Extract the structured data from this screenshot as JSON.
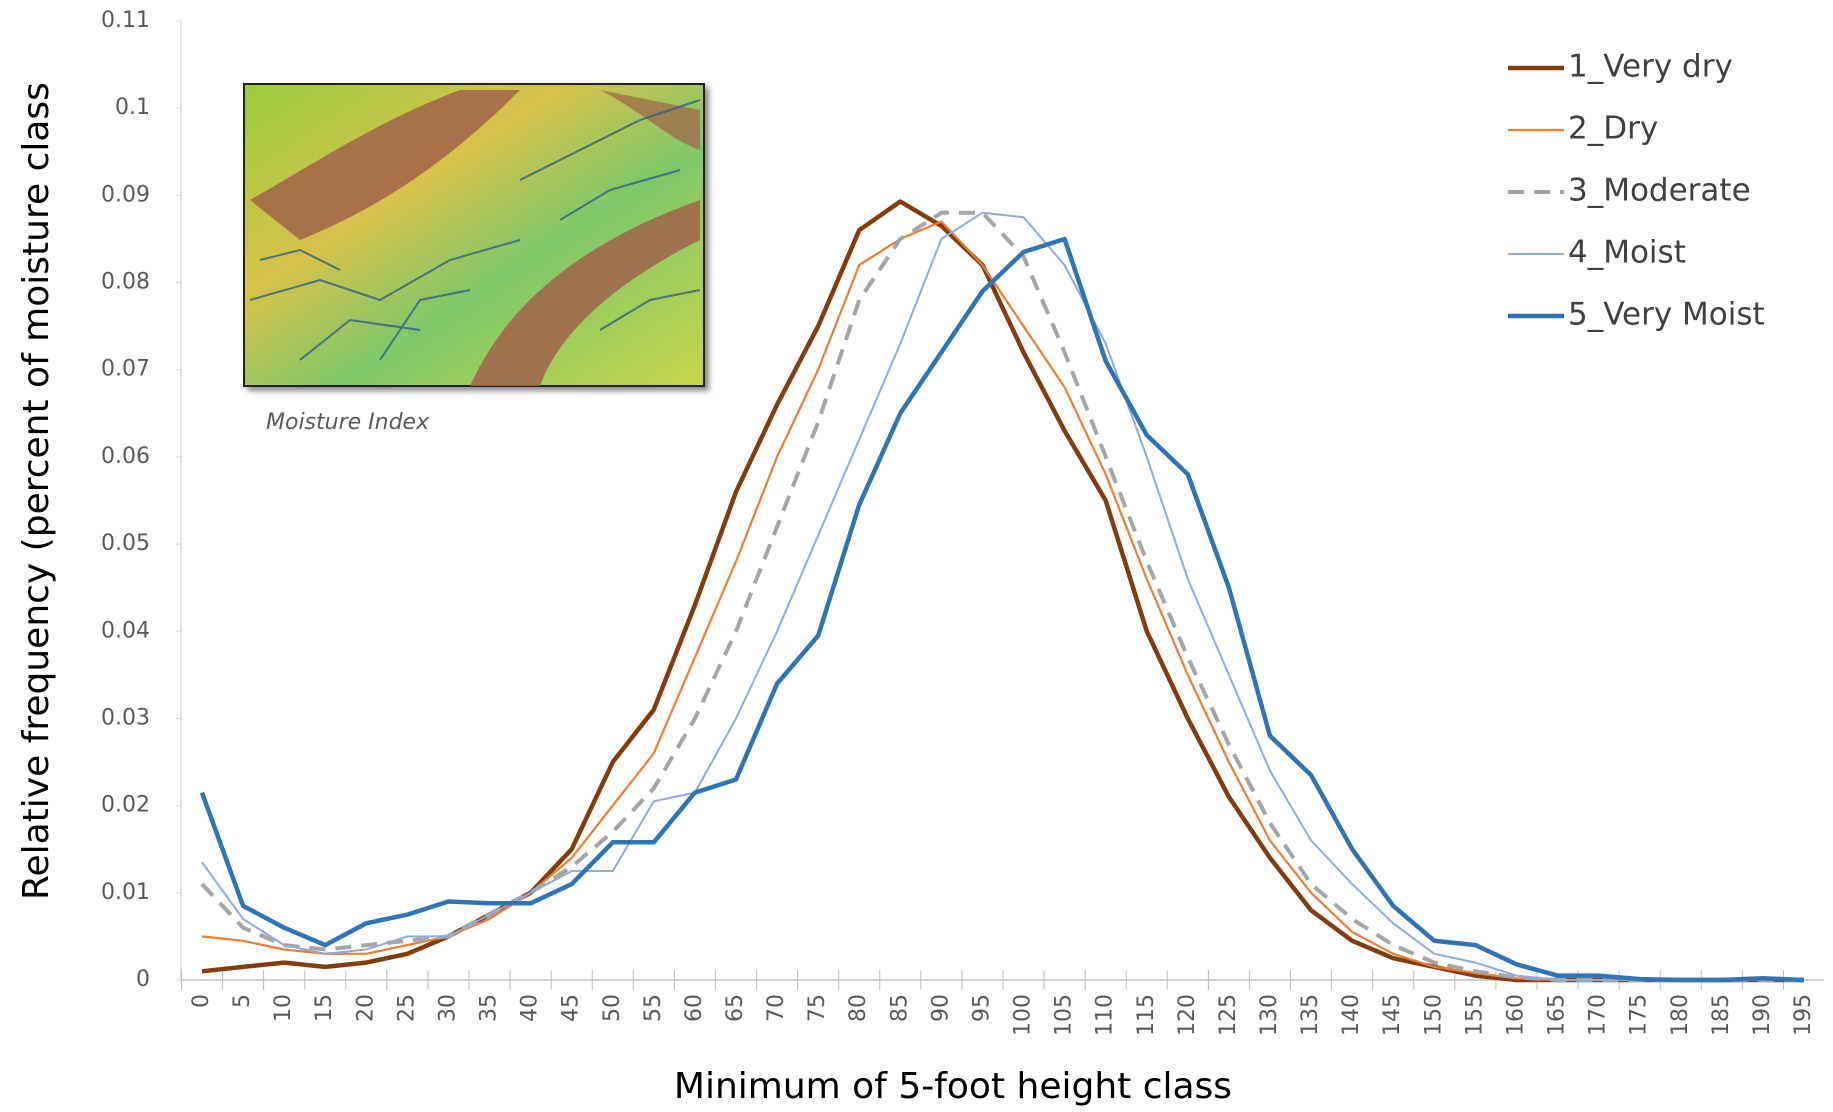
{
  "chart_data": {
    "type": "line",
    "y_label": "Relative frequency (percent of moisture class",
    "x_label": "Minimum of 5-foot height class",
    "annotation": "Moisture Index",
    "categories": [
      "0",
      "5",
      "10",
      "15",
      "20",
      "25",
      "30",
      "35",
      "40",
      "45",
      "50",
      "55",
      "60",
      "65",
      "70",
      "75",
      "80",
      "85",
      "90",
      "95",
      "100",
      "105",
      "110",
      "115",
      "120",
      "125",
      "130",
      "135",
      "140",
      "145",
      "150",
      "155",
      "160",
      "165",
      "170",
      "175",
      "180",
      "185",
      "190",
      "195"
    ],
    "ylim": [
      0,
      0.11
    ],
    "yticks": [
      0,
      0.01,
      0.02,
      0.03,
      0.04,
      0.05,
      0.06,
      0.07,
      0.08,
      0.09,
      0.1,
      0.11
    ],
    "grid": false,
    "legend": "top-right",
    "series": [
      {
        "name": "1_Very dry",
        "color": "#843c0c",
        "width": 4.5,
        "dashed": false,
        "values": [
          0.001,
          0.0015,
          0.002,
          0.0015,
          0.002,
          0.003,
          0.005,
          0.0075,
          0.01,
          0.015,
          0.025,
          0.031,
          0.043,
          0.056,
          0.066,
          0.075,
          0.086,
          0.0893,
          0.0865,
          0.082,
          0.072,
          0.063,
          0.055,
          0.04,
          0.03,
          0.021,
          0.014,
          0.008,
          0.0045,
          0.0025,
          0.0015,
          0.0005,
          0,
          0,
          0,
          0,
          0,
          0,
          0,
          0
        ]
      },
      {
        "name": "2_Dry",
        "color": "#ed7d31",
        "width": 2.2,
        "dashed": false,
        "values": [
          0.005,
          0.0045,
          0.0035,
          0.003,
          0.003,
          0.004,
          0.005,
          0.007,
          0.01,
          0.014,
          0.02,
          0.026,
          0.037,
          0.048,
          0.06,
          0.07,
          0.082,
          0.085,
          0.087,
          0.082,
          0.075,
          0.068,
          0.058,
          0.046,
          0.035,
          0.025,
          0.016,
          0.01,
          0.0055,
          0.003,
          0.0015,
          0.0008,
          0.0002,
          0,
          0,
          0,
          0,
          0,
          0,
          0
        ]
      },
      {
        "name": "3_Moderate",
        "color": "#a5a5a5",
        "width": 4,
        "dashed": true,
        "values": [
          0.011,
          0.006,
          0.004,
          0.0035,
          0.004,
          0.0045,
          0.005,
          0.0075,
          0.01,
          0.013,
          0.017,
          0.022,
          0.03,
          0.04,
          0.052,
          0.064,
          0.078,
          0.085,
          0.088,
          0.088,
          0.083,
          0.072,
          0.06,
          0.048,
          0.037,
          0.027,
          0.018,
          0.011,
          0.007,
          0.004,
          0.002,
          0.001,
          0.0003,
          0,
          0,
          0,
          0,
          0,
          0,
          0
        ]
      },
      {
        "name": "4_Moist",
        "color": "#8faadc",
        "width": 2,
        "dashed": false,
        "values": [
          0.0135,
          0.007,
          0.004,
          0.003,
          0.0035,
          0.005,
          0.005,
          0.0075,
          0.01,
          0.0125,
          0.0125,
          0.0205,
          0.0215,
          0.03,
          0.04,
          0.051,
          0.062,
          0.073,
          0.085,
          0.088,
          0.0875,
          0.082,
          0.073,
          0.06,
          0.046,
          0.035,
          0.024,
          0.016,
          0.011,
          0.0065,
          0.003,
          0.002,
          0.0005,
          0,
          0,
          0,
          0,
          0,
          0,
          0
        ]
      },
      {
        "name": "5_Very Moist",
        "color": "#2e75b6",
        "width": 4.5,
        "dashed": false,
        "values": [
          0.0215,
          0.0085,
          0.006,
          0.004,
          0.0065,
          0.0075,
          0.009,
          0.0088,
          0.0088,
          0.011,
          0.0158,
          0.0158,
          0.0215,
          0.023,
          0.034,
          0.0395,
          0.0545,
          0.065,
          0.072,
          0.079,
          0.0835,
          0.085,
          0.071,
          0.0625,
          0.058,
          0.045,
          0.028,
          0.0235,
          0.015,
          0.0085,
          0.0045,
          0.004,
          0.0018,
          0.0005,
          0.0005,
          0.0001,
          0,
          0,
          0.0002,
          0
        ]
      }
    ]
  }
}
